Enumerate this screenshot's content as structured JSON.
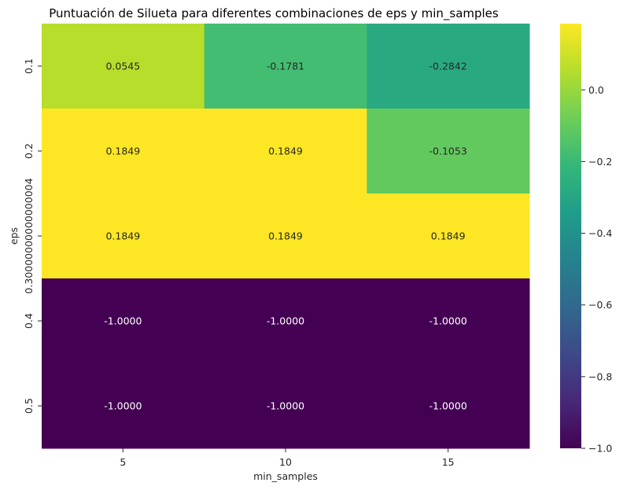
{
  "chart_data": {
    "type": "heatmap",
    "title": "Puntuación de Silueta para diferentes combinaciones de eps y min_samples",
    "xlabel": "min_samples",
    "ylabel": "eps",
    "x_categories": [
      "5",
      "10",
      "15"
    ],
    "y_categories": [
      "0.1",
      "0.2",
      "0.30000000000000004",
      "0.4",
      "0.5"
    ],
    "values": [
      [
        0.0545,
        -0.1781,
        -0.2842
      ],
      [
        0.1849,
        0.1849,
        -0.1053
      ],
      [
        0.1849,
        0.1849,
        0.1849
      ],
      [
        -1.0,
        -1.0,
        -1.0
      ],
      [
        -1.0,
        -1.0,
        -1.0
      ]
    ],
    "cell_labels": [
      [
        "0.0545",
        "-0.1781",
        "-0.2842"
      ],
      [
        "0.1849",
        "0.1849",
        "-0.1053"
      ],
      [
        "0.1849",
        "0.1849",
        "0.1849"
      ],
      [
        "-1.0000",
        "-1.0000",
        "-1.0000"
      ],
      [
        "-1.0000",
        "-1.0000",
        "-1.0000"
      ]
    ],
    "colormap": "viridis",
    "vmin": -1.0,
    "vmax": 0.1849,
    "colorbar_ticks": [
      0.0,
      -0.2,
      -0.4,
      -0.6,
      -0.8,
      -1.0
    ],
    "colorbar_tick_labels": [
      "0.0",
      "−0.2",
      "−0.4",
      "−0.6",
      "−0.8",
      "−1.0"
    ],
    "grid": false,
    "legend": "colorbar-right"
  }
}
